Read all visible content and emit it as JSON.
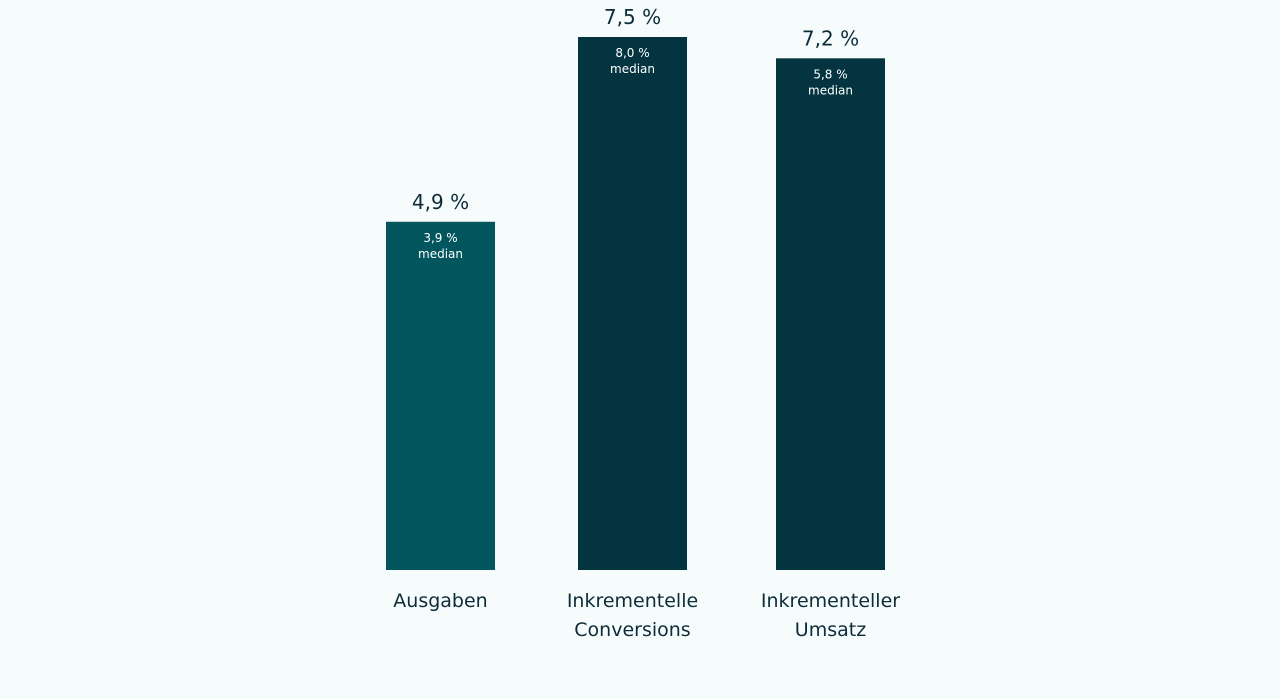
{
  "chart_data": {
    "type": "bar",
    "title": "",
    "xlabel": "",
    "ylabel": "",
    "ylim": [
      0,
      7.5
    ],
    "grid": false,
    "categories": [
      [
        "Ausgaben"
      ],
      [
        "Inkrementelle",
        "Conversions"
      ],
      [
        "Inkrementeller",
        "Umsatz"
      ]
    ],
    "values": [
      4.9,
      7.5,
      7.2
    ],
    "value_labels": [
      "4,9 %",
      "7,5 %",
      "7,2 %"
    ],
    "median_values": [
      3.9,
      8.0,
      5.8
    ],
    "median_labels": [
      "3,9 %",
      "8,0 %",
      "5,8 %"
    ],
    "median_word": "median",
    "colors": [
      "#03565e",
      "#033440",
      "#033440"
    ],
    "text_color": "#0c2c3a",
    "background": "#f6fbfb"
  }
}
